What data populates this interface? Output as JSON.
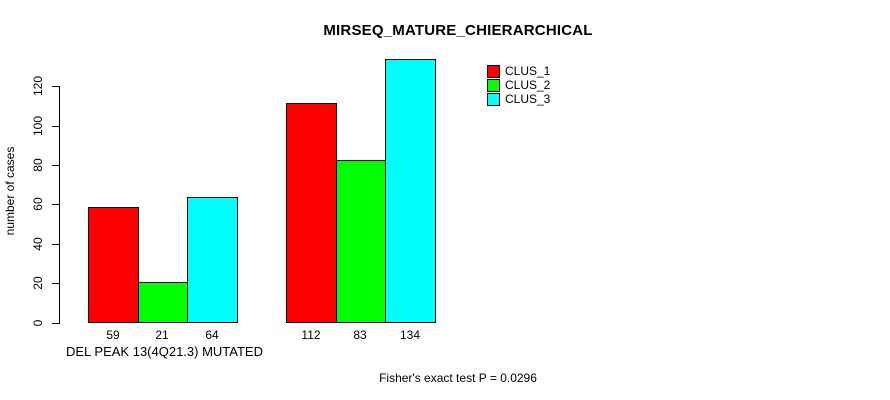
{
  "chart_data": {
    "type": "bar",
    "title": "MIRSEQ_MATURE_CHIERARCHICAL",
    "ylabel": "number of cases",
    "xlabel": "DEL PEAK 13(4Q21.3) MUTATED",
    "footer": "Fisher's exact test P = 0.0296",
    "yticks": [
      0,
      20,
      40,
      60,
      80,
      100,
      120
    ],
    "ylim": [
      0,
      134
    ],
    "grid": false,
    "bar_value_labels_shown": true,
    "legend_position": "top-right",
    "series": [
      {
        "name": "CLUS_1",
        "color": "#ff0000",
        "values": [
          59,
          112
        ]
      },
      {
        "name": "CLUS_2",
        "color": "#00ff00",
        "values": [
          21,
          83
        ]
      },
      {
        "name": "CLUS_3",
        "color": "#00ffff",
        "values": [
          64,
          134
        ]
      }
    ],
    "colors": {
      "axis": "#000000",
      "bar_border": "#000000",
      "background": "#ffffff"
    }
  }
}
